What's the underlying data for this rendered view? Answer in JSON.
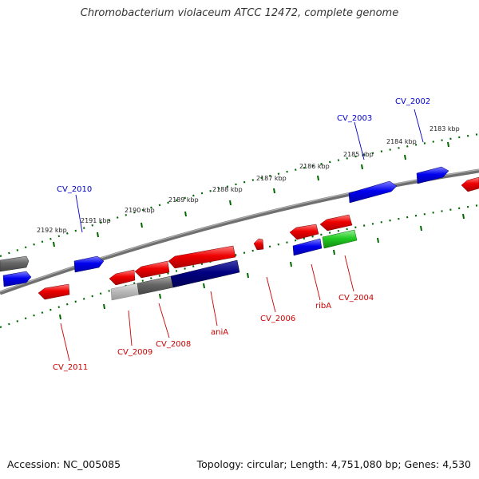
{
  "title": "Chromobacterium violaceum ATCC 12472, complete genome",
  "footer": {
    "accession": "Accession: NC_005085",
    "topology": "Topology: circular; Length: 4,751,080 bp; Genes: 4,530"
  },
  "kbp_labels": [
    "2183 kbp",
    "2184 kbp",
    "2185 kbp",
    "2186 kbp",
    "2187 kbp",
    "2188 kbp",
    "2189 kbp",
    "2190 kbp",
    "2191 kbp",
    "2192 kbp"
  ],
  "gene_labels": {
    "cv2002": "CV_2002",
    "cv2003": "CV_2003",
    "cv2010": "CV_2010",
    "cv2011": "CV_2011",
    "cv2009": "CV_2009",
    "cv2008": "CV_2008",
    "ania": "aniA",
    "cv2006": "CV_2006",
    "riba": "ribA",
    "cv2004": "CV_2004"
  },
  "colors": {
    "forward_gene": "#0000ee",
    "reverse_gene": "#ee0000",
    "rna_gene": "#22cc22",
    "grey_gene": "#666666",
    "light_grey_gene": "#bbbbbb",
    "navy_gene": "#000080",
    "ticks": "#006600",
    "backbone": "#808080",
    "forward_label": "#0000cc",
    "reverse_label": "#cc0000"
  }
}
